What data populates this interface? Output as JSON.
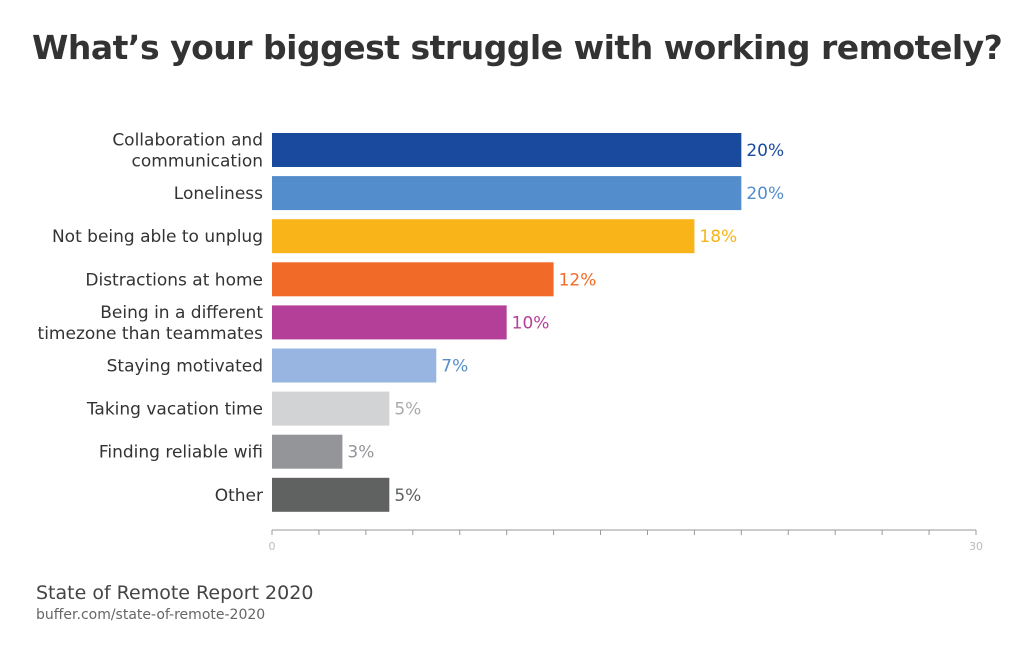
{
  "chart_data": {
    "type": "bar",
    "orientation": "horizontal",
    "title": "What’s your biggest struggle with working remotely?",
    "categories": [
      [
        "Collaboration and",
        "communication"
      ],
      [
        "Loneliness"
      ],
      [
        "Not being able to unplug"
      ],
      [
        "Distractions at home"
      ],
      [
        "Being in a different",
        "timezone than teammates"
      ],
      [
        "Staying motivated"
      ],
      [
        "Taking vacation time"
      ],
      [
        "Finding reliable wifi"
      ],
      [
        "Other"
      ]
    ],
    "values": [
      20,
      20,
      18,
      12,
      10,
      7,
      5,
      3,
      5
    ],
    "data_labels": [
      "20%",
      "20%",
      "18%",
      "12%",
      "10%",
      "7%",
      "5%",
      "3%",
      "5%"
    ],
    "bar_colors": [
      "#1A4A9E",
      "#548DCC",
      "#F8B418",
      "#F26A27",
      "#B43F98",
      "#97B5E0",
      "#D2D3D5",
      "#939598",
      "#606161"
    ],
    "label_colors": [
      "#1A4A9E",
      "#548DCC",
      "#F8B418",
      "#F26A27",
      "#B43F98",
      "#548DCC",
      "#AAAAAA",
      "#939598",
      "#606161"
    ],
    "xlim": [
      0,
      30
    ],
    "x_tick_step": 2,
    "x_tick_labels": [
      "0",
      "30"
    ],
    "grid": false
  },
  "source": {
    "title": "State of Remote Report 2020",
    "url": "buffer.com/state-of-remote-2020"
  }
}
